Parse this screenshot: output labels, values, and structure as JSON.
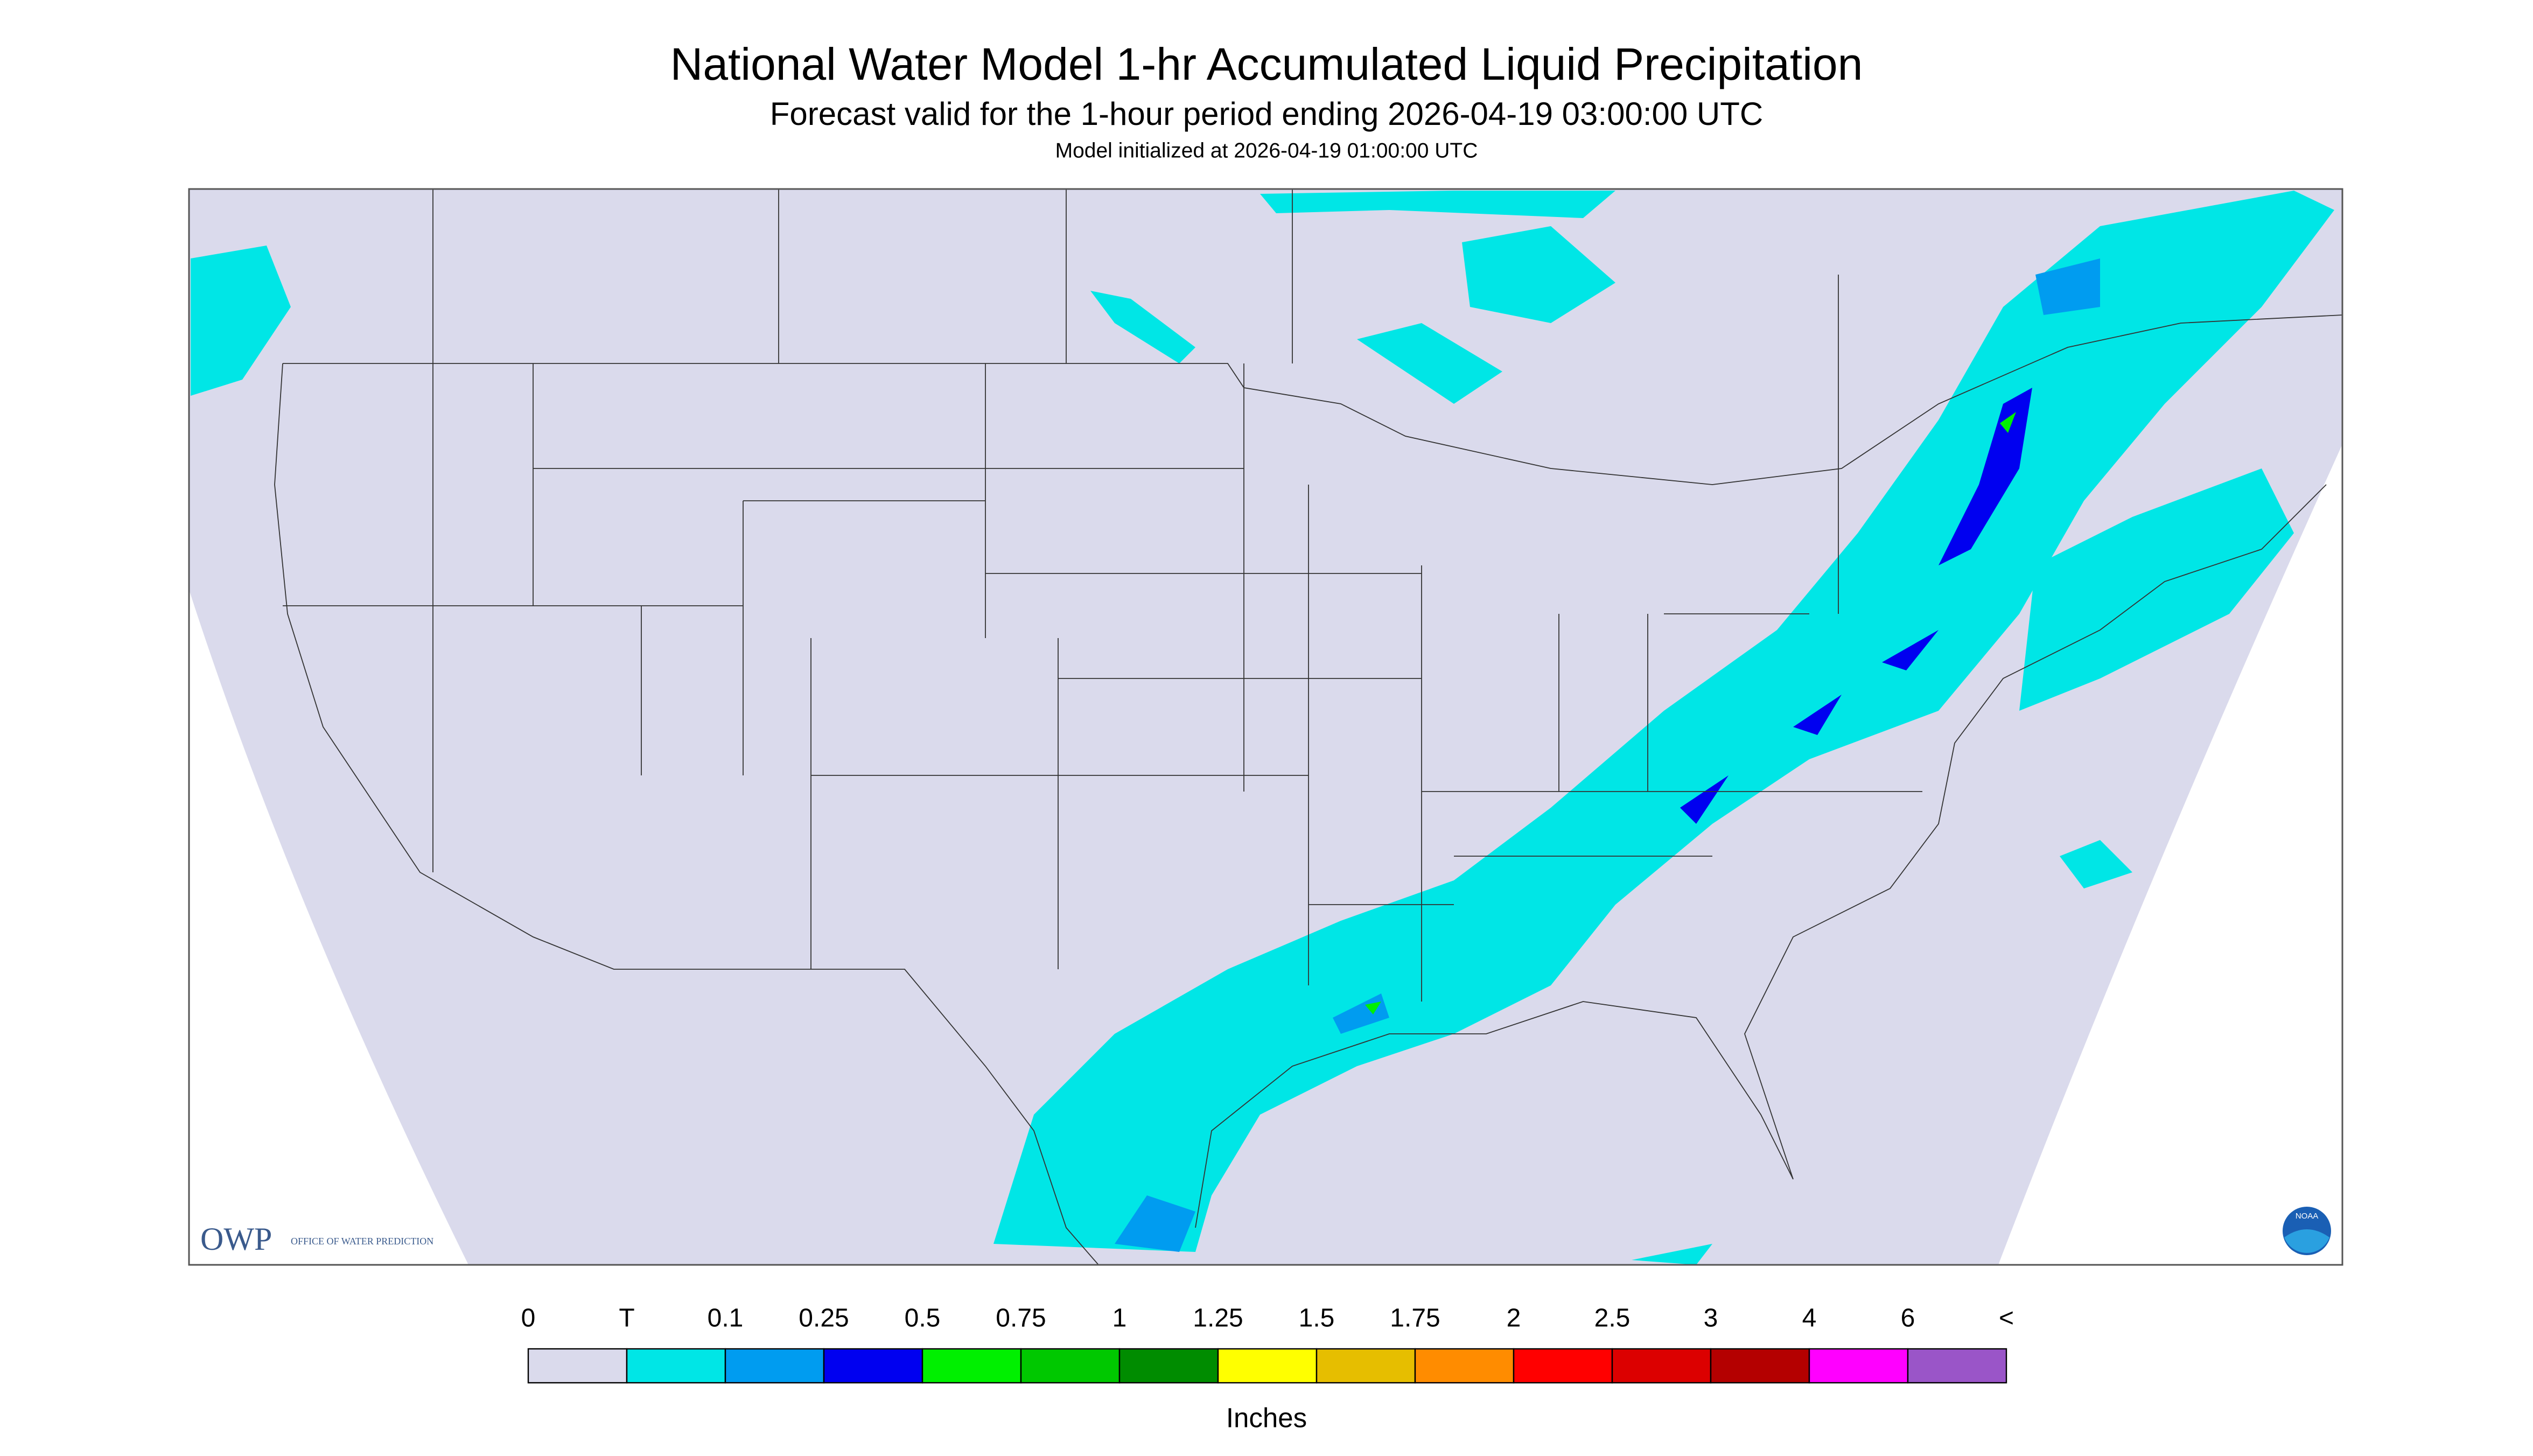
{
  "title": "National Water Model 1-hr Accumulated Liquid Precipitation",
  "subtitle": "Forecast valid for the 1-hour period ending 2026-04-19 03:00:00 UTC",
  "init_note": "Model initialized at 2026-04-19 01:00:00 UTC",
  "legend": {
    "labels": [
      0,
      "T",
      0.1,
      0.25,
      0.5,
      0.75,
      1,
      1.25,
      1.5,
      1.75,
      2,
      2.5,
      3,
      4,
      6,
      "<"
    ],
    "colors": [
      "#dadaec",
      "#00e6e6",
      "#009cf0",
      "#0000f0",
      "#00f000",
      "#00c800",
      "#008c00",
      "#ffff00",
      "#e6be00",
      "#ff8c00",
      "#ff0000",
      "#dc0000",
      "#b40000",
      "#ff00ff",
      "#9a55c8"
    ],
    "unit": "Inches"
  },
  "logos": {
    "owp": "OWP",
    "owp_full": "OFFICE OF WATER PREDICTION",
    "noaa": "NOAA"
  }
}
